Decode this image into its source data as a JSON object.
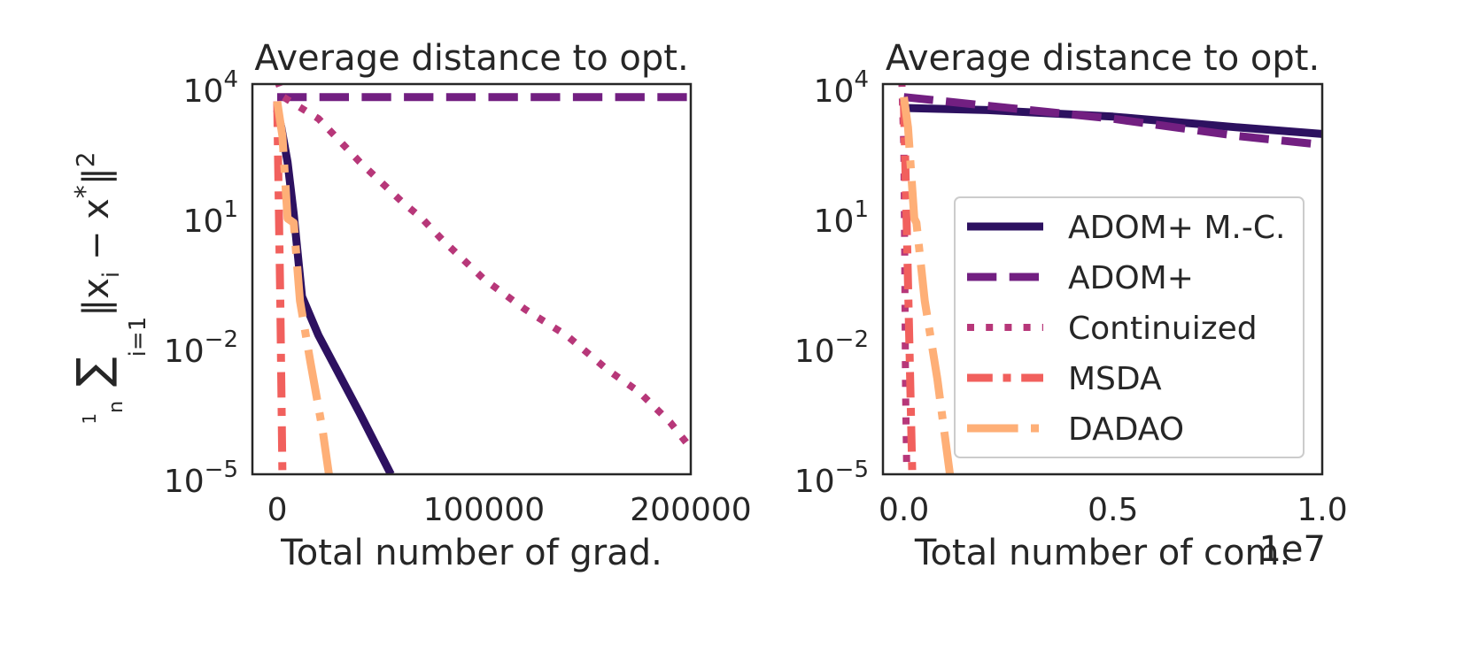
{
  "chart_data": [
    {
      "type": "line",
      "title": "Average distance to opt.",
      "xlabel": "Total number of grad.",
      "ylabel": "1/n Σ_{i=1}^{n} ||x_i − x*||²",
      "yscale": "log",
      "xlim": [
        -12000,
        200000
      ],
      "ylim_exponents": [
        -5,
        4
      ],
      "xticks": [
        {
          "v": 0,
          "label": "0"
        },
        {
          "v": 100000,
          "label": "100000"
        },
        {
          "v": 200000,
          "label": "200000"
        }
      ],
      "yticks": [
        {
          "e": 4,
          "base": "10",
          "exp": "4"
        },
        {
          "e": 1,
          "base": "10",
          "exp": "1"
        },
        {
          "e": -2,
          "base": "10",
          "exp": "−2"
        },
        {
          "e": -5,
          "base": "10",
          "exp": "−5"
        }
      ],
      "series": [
        {
          "name": "ADOM+ M.-C.",
          "color": "#2d1160",
          "style": "solid",
          "width": 9,
          "points": [
            [
              0,
              3.4
            ],
            [
              2000,
              3.0
            ],
            [
              5000,
              2.2
            ],
            [
              8000,
              1.0
            ],
            [
              12000,
              -0.9
            ],
            [
              20000,
              -1.8
            ],
            [
              40000,
              -3.6
            ],
            [
              55000,
              -5.0
            ]
          ]
        },
        {
          "name": "ADOM+",
          "color": "#721f81",
          "style": "dashed",
          "width": 9,
          "points": [
            [
              0,
              3.7
            ],
            [
              100000,
              3.7
            ],
            [
              200000,
              3.7
            ]
          ]
        },
        {
          "name": "Continuized",
          "color": "#b73779",
          "style": "dotted",
          "width": 8,
          "points": [
            [
              0,
              4.1
            ],
            [
              3000,
              3.7
            ],
            [
              20000,
              3.2
            ],
            [
              40000,
              2.2
            ],
            [
              60000,
              1.3
            ],
            [
              70000,
              0.9
            ],
            [
              80000,
              0.4
            ],
            [
              100000,
              -0.5
            ],
            [
              120000,
              -1.2
            ],
            [
              140000,
              -1.8
            ],
            [
              160000,
              -2.6
            ],
            [
              175000,
              -3.1
            ],
            [
              190000,
              -3.8
            ],
            [
              200000,
              -4.4
            ]
          ]
        },
        {
          "name": "MSDA",
          "color": "#f1605d",
          "style": "dashdot-fine",
          "width": 9,
          "points": [
            [
              0,
              3.6
            ],
            [
              500,
              2.0
            ],
            [
              1500,
              -1.0
            ],
            [
              2500,
              -5.0
            ]
          ]
        },
        {
          "name": "DADAO",
          "color": "#feaf77",
          "style": "dashdot",
          "width": 9,
          "points": [
            [
              0,
              3.6
            ],
            [
              2500,
              2.8
            ],
            [
              5000,
              0.9
            ],
            [
              8000,
              0.8
            ],
            [
              11000,
              -1.0
            ],
            [
              16000,
              -2.4
            ],
            [
              22000,
              -4.0
            ],
            [
              25000,
              -5.0
            ]
          ]
        }
      ]
    },
    {
      "type": "line",
      "title": "Average distance to opt.",
      "xlabel": "Total number of com.",
      "x_offset_label": "1e7",
      "yscale": "log",
      "xlim": [
        -0.05,
        1.0
      ],
      "ylim_exponents": [
        -5,
        4
      ],
      "xticks": [
        {
          "v": 0.0,
          "label": "0.0"
        },
        {
          "v": 0.5,
          "label": "0.5"
        },
        {
          "v": 1.0,
          "label": "1.0"
        }
      ],
      "yticks": [
        {
          "e": 4,
          "base": "10",
          "exp": "4"
        },
        {
          "e": 1,
          "base": "10",
          "exp": "1"
        },
        {
          "e": -2,
          "base": "10",
          "exp": "−2"
        },
        {
          "e": -5,
          "base": "10",
          "exp": "−5"
        }
      ],
      "legend": {
        "position": "lower-right"
      },
      "series": [
        {
          "name": "ADOM+ M.-C.",
          "color": "#2d1160",
          "style": "solid",
          "width": 9,
          "points": [
            [
              0.0,
              3.45
            ],
            [
              0.2,
              3.4
            ],
            [
              0.5,
              3.25
            ],
            [
              0.8,
              3.0
            ],
            [
              1.0,
              2.85
            ]
          ]
        },
        {
          "name": "ADOM+",
          "color": "#721f81",
          "style": "dashed",
          "width": 9,
          "points": [
            [
              0.0,
              3.7
            ],
            [
              0.2,
              3.5
            ],
            [
              0.5,
              3.2
            ],
            [
              0.8,
              2.8
            ],
            [
              1.0,
              2.6
            ]
          ]
        },
        {
          "name": "Continuized",
          "color": "#b73779",
          "style": "dotted",
          "width": 8,
          "points": [
            [
              -0.005,
              4.1
            ],
            [
              0.0,
              2.5
            ],
            [
              0.002,
              0.0
            ],
            [
              0.004,
              -3.0
            ],
            [
              0.007,
              -5.0
            ]
          ]
        },
        {
          "name": "MSDA",
          "color": "#f1605d",
          "style": "dashdot-fine",
          "width": 9,
          "points": [
            [
              0.0,
              3.6
            ],
            [
              0.005,
              1.5
            ],
            [
              0.012,
              -1.5
            ],
            [
              0.02,
              -5.0
            ]
          ]
        },
        {
          "name": "DADAO",
          "color": "#feaf77",
          "style": "dashdot",
          "width": 9,
          "points": [
            [
              0.0,
              3.7
            ],
            [
              0.01,
              3.0
            ],
            [
              0.025,
              0.9
            ],
            [
              0.03,
              0.8
            ],
            [
              0.05,
              -1.0
            ],
            [
              0.08,
              -2.8
            ],
            [
              0.11,
              -5.0
            ]
          ]
        }
      ]
    }
  ]
}
